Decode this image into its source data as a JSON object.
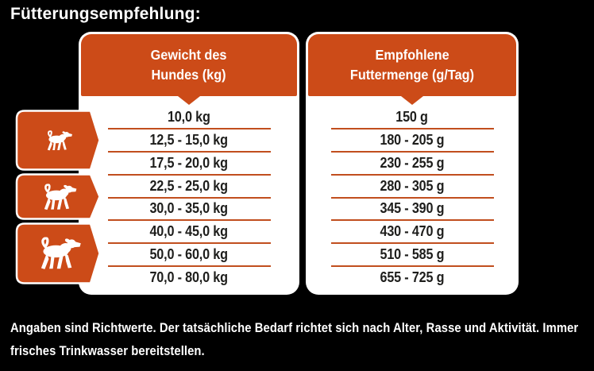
{
  "title": "Fütterungsempfehlung:",
  "table": {
    "left_header": {
      "line1": "Gewicht des",
      "line2": "Hundes (kg)"
    },
    "right_header": {
      "line1": "Empfohlene",
      "line2": "Futtermenge (g/Tag)"
    },
    "rows": [
      {
        "weight": "10,0 kg",
        "amount": "150 g"
      },
      {
        "weight": "12,5 - 15,0 kg",
        "amount": "180 - 205 g"
      },
      {
        "weight": "17,5 - 20,0 kg",
        "amount": "230 - 255 g"
      },
      {
        "weight": "22,5 - 25,0 kg",
        "amount": "280 - 305 g"
      },
      {
        "weight": "30,0 - 35,0 kg",
        "amount": "345 - 390 g"
      },
      {
        "weight": "40,0 - 45,0 kg",
        "amount": "430 - 470 g"
      },
      {
        "weight": "50,0 - 60,0 kg",
        "amount": "510 - 585 g"
      },
      {
        "weight": "70,0 - 80,0 kg",
        "amount": "655 - 725 g"
      }
    ]
  },
  "size_groups": [
    {
      "icon": "small-dog-icon"
    },
    {
      "icon": "medium-dog-icon"
    },
    {
      "icon": "large-dog-icon"
    }
  ],
  "footer": {
    "line1": "Angaben sind Richtwerte. Der tatsächliche Bedarf richtet sich nach Alter, Rasse und Aktivität. Immer",
    "line2": "frisches Trinkwasser bereitstellen."
  },
  "colors": {
    "accent_orange": "#CC4B18",
    "separator_line": "#C14E1E",
    "background": "#000000",
    "card_background": "#FFFFFF",
    "text_dark": "#1E1E1C",
    "text_light": "#FFFFFF"
  }
}
